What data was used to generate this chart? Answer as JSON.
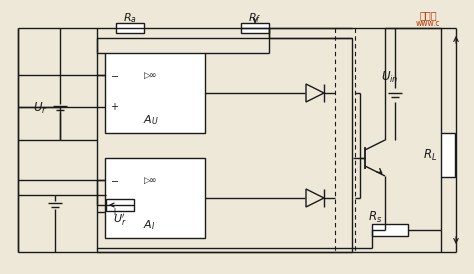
{
  "bg_color": "#ede8d8",
  "line_color": "#1a1a1a",
  "watermark1": "维库一",
  "watermark2": "www.c"
}
